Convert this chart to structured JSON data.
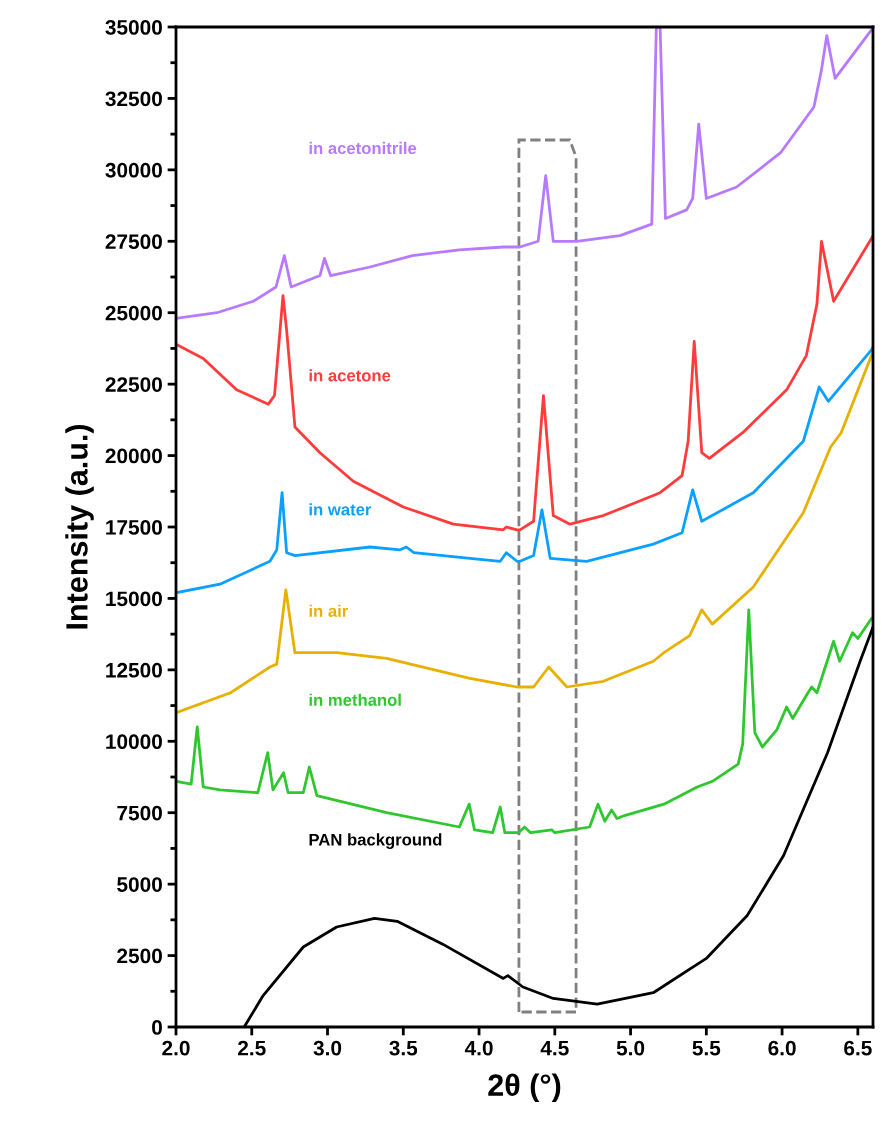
{
  "chart_data": {
    "type": "line",
    "xlabel": "2θ (°)",
    "ylabel": "Intensity (a.u.)",
    "xlim": [
      2.0,
      6.6
    ],
    "ylim": [
      0,
      35000
    ],
    "xticks": [
      {
        "value": 2.0,
        "label": "2.0"
      },
      {
        "value": 2.5,
        "label": "2.5"
      },
      {
        "value": 3.0,
        "label": "3.0"
      },
      {
        "value": 3.5,
        "label": "3.5"
      },
      {
        "value": 4.0,
        "label": "4.0"
      },
      {
        "value": 4.5,
        "label": "4.5"
      },
      {
        "value": 5.0,
        "label": "5.0"
      },
      {
        "value": 5.5,
        "label": "5.5"
      },
      {
        "value": 6.0,
        "label": "6.0"
      },
      {
        "value": 6.5,
        "label": "6.5"
      }
    ],
    "yticks": [
      0,
      2500,
      5000,
      7500,
      10000,
      12500,
      15000,
      17500,
      20000,
      22500,
      25000,
      27500,
      30000,
      32500,
      35000
    ],
    "grid": false,
    "legend": false,
    "marker": "none",
    "line_style": "solid",
    "series": [
      {
        "name": "in acetonitrile",
        "color": "#b77aff",
        "x": [
          2.0,
          2.27,
          2.51,
          2.66,
          2.715,
          2.76,
          2.95,
          2.98,
          3.02,
          3.28,
          3.56,
          3.87,
          4.16,
          4.27,
          4.39,
          4.44,
          4.49,
          4.645,
          4.93,
          5.14,
          5.17,
          5.195,
          5.23,
          5.37,
          5.41,
          5.45,
          5.5,
          5.7,
          5.99,
          6.21,
          6.26,
          6.295,
          6.35,
          6.59,
          6.6
        ],
        "values": [
          24800,
          25000,
          25400,
          25900,
          27000,
          25900,
          26300,
          26900,
          26300,
          26600,
          27000,
          27200,
          27300,
          27300,
          27500,
          29800,
          27500,
          27500,
          27700,
          28100,
          35000,
          35000,
          28300,
          28600,
          29000,
          31600,
          29000,
          29400,
          30600,
          32200,
          33500,
          34700,
          33200,
          34900,
          35000
        ]
      },
      {
        "name": "in acetone",
        "color": "#ff3b3b",
        "x": [
          2.0,
          2.18,
          2.4,
          2.61,
          2.65,
          2.706,
          2.73,
          2.785,
          2.95,
          3.17,
          3.5,
          3.83,
          4.16,
          4.18,
          4.25,
          4.27,
          4.36,
          4.425,
          4.49,
          4.6,
          4.82,
          5.15,
          5.195,
          5.34,
          5.38,
          5.42,
          5.47,
          5.52,
          5.74,
          6.03,
          6.16,
          6.23,
          6.26,
          6.34,
          6.59,
          6.6
        ],
        "values": [
          23900,
          23400,
          22300,
          21800,
          22100,
          25600,
          24400,
          21000,
          20100,
          19100,
          18200,
          17600,
          17400,
          17500,
          17400,
          17400,
          17700,
          22100,
          17900,
          17600,
          17900,
          18600,
          18700,
          19300,
          20500,
          24000,
          20100,
          19900,
          20800,
          22300,
          23500,
          25300,
          27500,
          25400,
          27600,
          27700
        ]
      },
      {
        "name": "in water",
        "color": "#0aa0ff",
        "x": [
          2.0,
          2.29,
          2.62,
          2.665,
          2.7,
          2.73,
          2.785,
          3.28,
          3.48,
          3.52,
          3.57,
          3.94,
          4.14,
          4.18,
          4.25,
          4.27,
          4.36,
          4.415,
          4.47,
          4.71,
          5.15,
          5.34,
          5.41,
          5.47,
          5.81,
          6.14,
          6.245,
          6.305,
          6.59,
          6.6
        ],
        "values": [
          15200,
          15500,
          16300,
          16700,
          18700,
          16600,
          16500,
          16800,
          16700,
          16800,
          16600,
          16400,
          16300,
          16600,
          16300,
          16300,
          16500,
          18100,
          16400,
          16300,
          16900,
          17300,
          18800,
          17700,
          18700,
          20500,
          22400,
          21900,
          23700,
          23800
        ]
      },
      {
        "name": "in air",
        "color": "#e8b000",
        "x": [
          2.0,
          2.36,
          2.62,
          2.665,
          2.725,
          2.785,
          3.06,
          3.39,
          3.94,
          4.25,
          4.36,
          4.46,
          4.58,
          4.82,
          5.15,
          5.22,
          5.39,
          5.47,
          5.54,
          5.81,
          6.14,
          6.32,
          6.39,
          6.59,
          6.6
        ],
        "values": [
          11000,
          11700,
          12600,
          12700,
          15300,
          13100,
          13100,
          12900,
          12200,
          11900,
          11900,
          12600,
          11900,
          12100,
          12800,
          13100,
          13700,
          14600,
          14100,
          15400,
          18000,
          20300,
          20800,
          23500,
          23600
        ]
      },
      {
        "name": "in methanol",
        "color": "#2ec82e",
        "x": [
          2.0,
          2.1,
          2.14,
          2.18,
          2.29,
          2.54,
          2.605,
          2.64,
          2.71,
          2.74,
          2.84,
          2.88,
          2.93,
          3.39,
          3.87,
          3.935,
          3.97,
          4.09,
          4.14,
          4.17,
          4.26,
          4.3,
          4.34,
          4.48,
          4.5,
          4.73,
          4.785,
          4.83,
          4.875,
          4.91,
          4.96,
          5.22,
          5.44,
          5.54,
          5.71,
          5.74,
          5.78,
          5.82,
          5.87,
          5.965,
          6.03,
          6.07,
          6.16,
          6.195,
          6.23,
          6.34,
          6.38,
          6.465,
          6.5,
          6.59,
          6.6
        ],
        "values": [
          8600,
          8500,
          10500,
          8400,
          8300,
          8200,
          9600,
          8300,
          8900,
          8200,
          8200,
          9100,
          8100,
          7500,
          7000,
          7800,
          6900,
          6800,
          7700,
          6800,
          6800,
          7000,
          6800,
          6900,
          6800,
          7000,
          7800,
          7200,
          7600,
          7300,
          7400,
          7800,
          8400,
          8600,
          9200,
          9900,
          14600,
          10300,
          9800,
          10400,
          11200,
          10800,
          11600,
          11900,
          11700,
          13500,
          12800,
          13800,
          13600,
          14300,
          14300
        ]
      },
      {
        "name": "PAN background",
        "color": "#000000",
        "x": [
          2.45,
          2.575,
          2.84,
          3.06,
          3.31,
          3.46,
          3.76,
          4.16,
          4.19,
          4.29,
          4.49,
          4.78,
          5.15,
          5.5,
          5.77,
          6.01,
          6.3,
          6.515,
          6.6
        ],
        "values": [
          0,
          1100,
          2800,
          3500,
          3800,
          3700,
          2900,
          1700,
          1800,
          1400,
          1000,
          800,
          1200,
          2400,
          3900,
          6000,
          9600,
          12800,
          14000
        ]
      }
    ]
  }
}
